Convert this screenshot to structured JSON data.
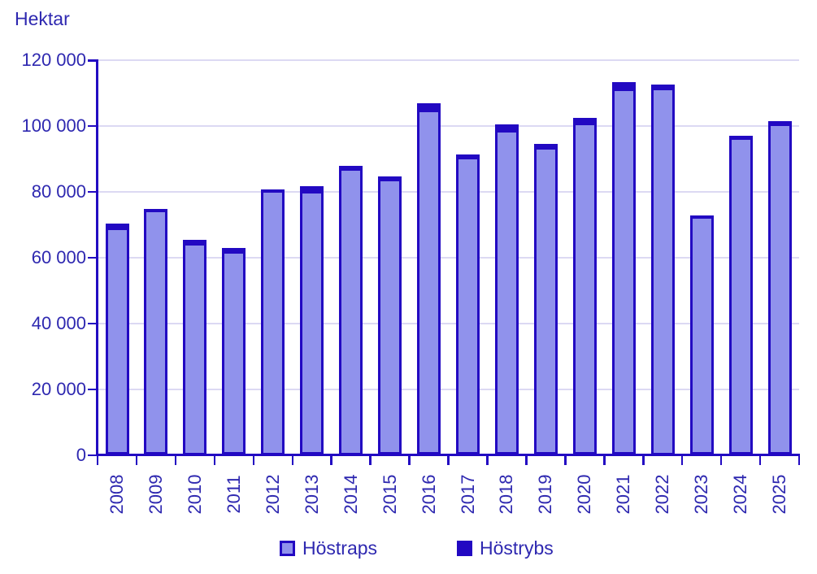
{
  "title": "Hektar",
  "colors": {
    "bar_fill": "#9092ec",
    "bar_dark": "#2209c2",
    "text": "#2e28b0",
    "grid": "#dcd9f3",
    "background": "#ffffff"
  },
  "chart_data": {
    "type": "bar",
    "stacked": true,
    "title": "Hektar",
    "ylabel": "Hektar",
    "xlabel": "",
    "ylim": [
      0,
      120000
    ],
    "ytick_values": [
      0,
      20000,
      40000,
      60000,
      80000,
      100000,
      120000
    ],
    "ytick_labels": [
      "0",
      "20 000",
      "40 000",
      "60 000",
      "80 000",
      "100 000",
      "120 000"
    ],
    "grid": "horizontal",
    "legend_position": "bottom",
    "categories": [
      "2008",
      "2009",
      "2010",
      "2011",
      "2012",
      "2013",
      "2014",
      "2015",
      "2016",
      "2017",
      "2018",
      "2019",
      "2020",
      "2021",
      "2022",
      "2023",
      "2024",
      "2025"
    ],
    "series": [
      {
        "name": "Höstraps",
        "values": [
          69000,
          74500,
          64300,
          61800,
          80400,
          80100,
          87200,
          83800,
          105000,
          90500,
          98700,
          93500,
          100900,
          111400,
          111600,
          72600,
          96600,
          100700
        ]
      },
      {
        "name": "Höstrybs",
        "values": [
          1300,
          200,
          1200,
          1200,
          300,
          1500,
          800,
          900,
          1800,
          800,
          1700,
          1100,
          1500,
          1900,
          1100,
          300,
          500,
          700
        ]
      }
    ],
    "totals": [
      70300,
      74700,
      65500,
      63000,
      80700,
      81600,
      88000,
      84700,
      106800,
      91300,
      100400,
      94600,
      102400,
      113300,
      112700,
      72900,
      97100,
      101400
    ]
  },
  "legend": {
    "items": [
      {
        "label": "Höstraps",
        "swatch": "light-fill-dark-border"
      },
      {
        "label": "Höstrybs",
        "swatch": "solid-dark"
      }
    ]
  }
}
